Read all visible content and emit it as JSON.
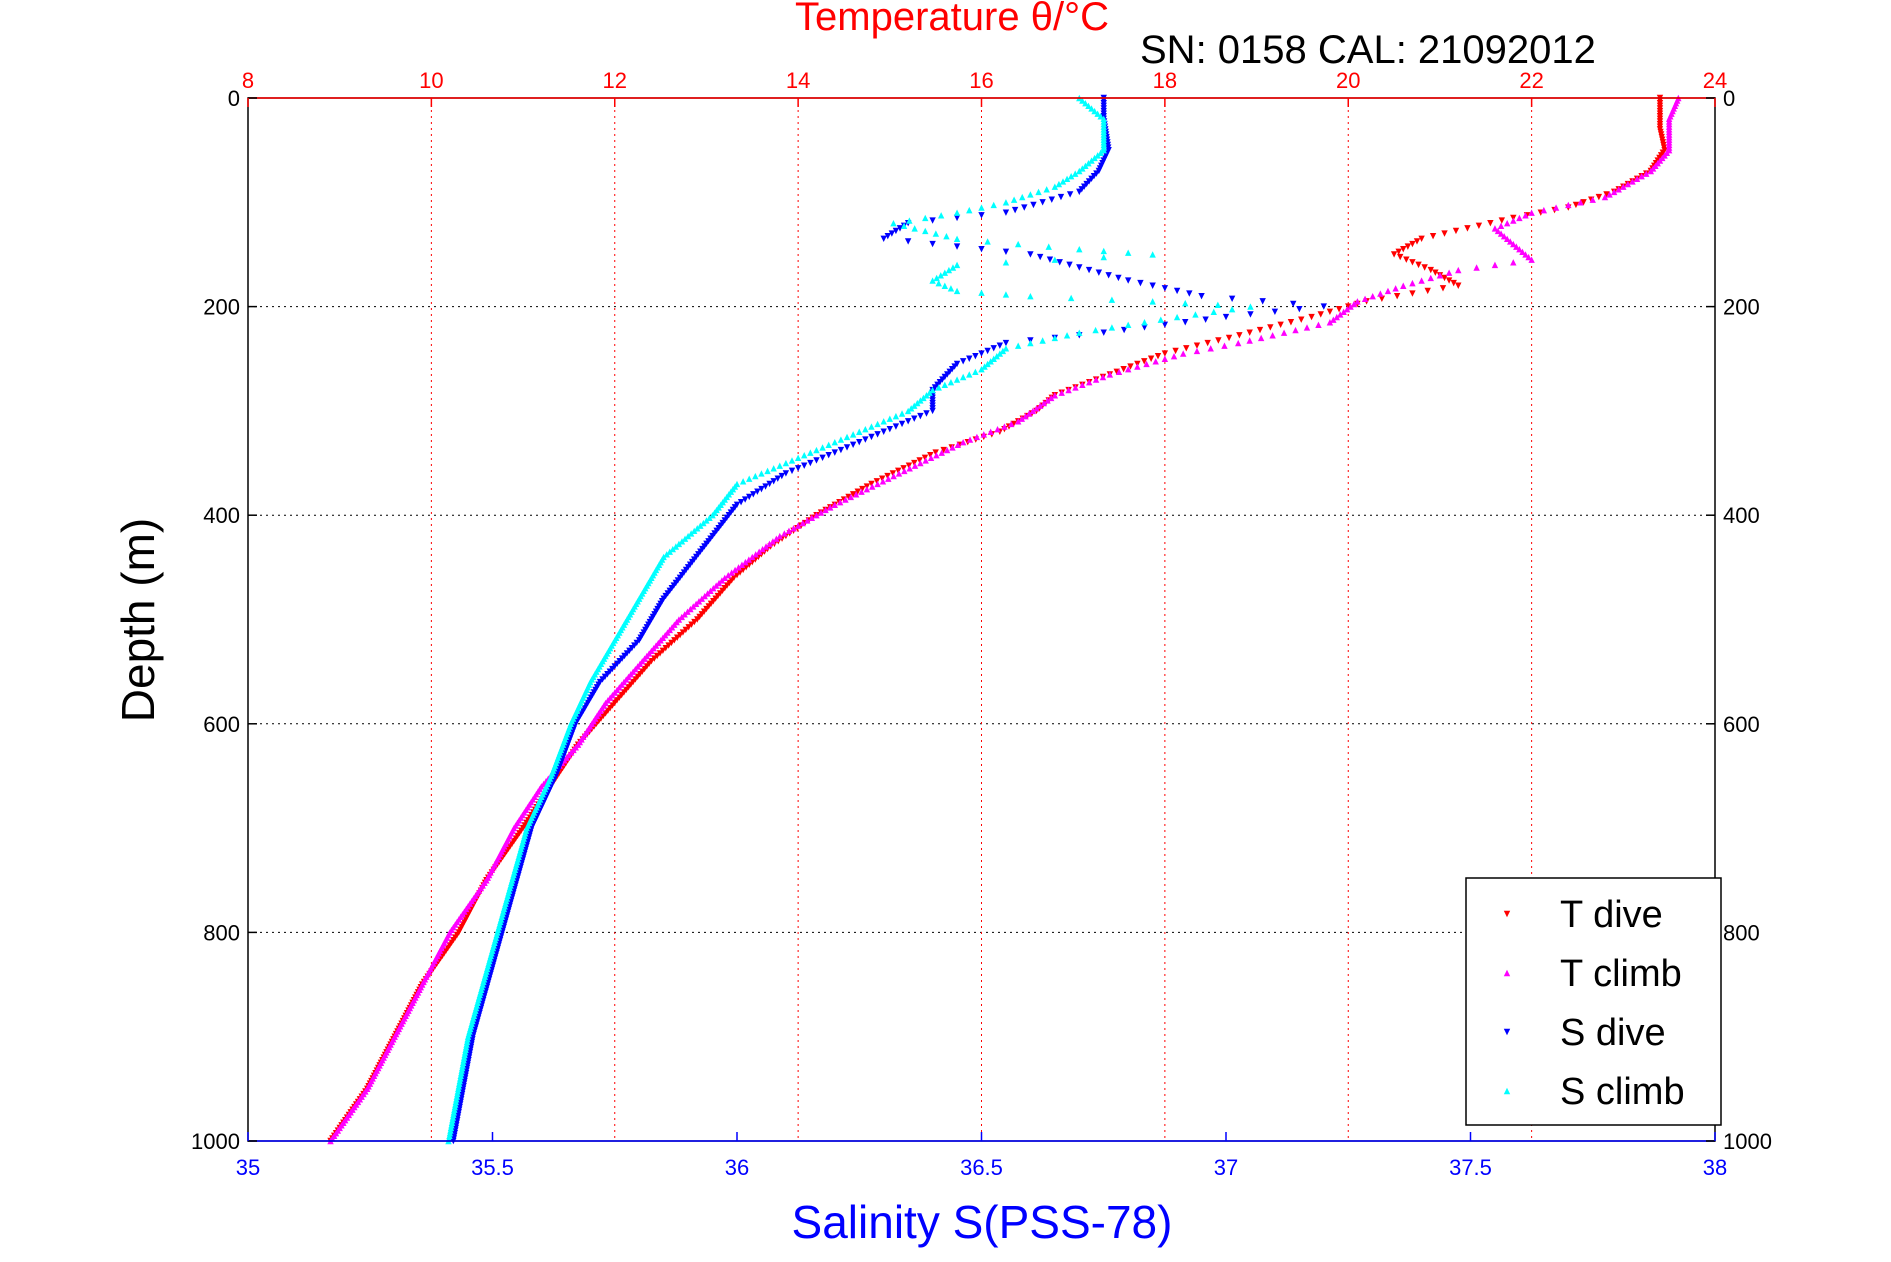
{
  "chart_data": {
    "type": "scatter",
    "title": "Temperature θ/°C",
    "subtitle": "SN: 0158  CAL: 21092012",
    "xlabel": "Salinity S(PSS-78)",
    "ylabel": "Depth (m)",
    "x_bottom": {
      "min": 35,
      "max": 38,
      "ticks": [
        "35",
        "35.5",
        "36",
        "36.5",
        "37",
        "37.5",
        "38"
      ],
      "color": "#0000ff"
    },
    "x_top": {
      "min": 8,
      "max": 24,
      "ticks": [
        "8",
        "10",
        "12",
        "14",
        "16",
        "18",
        "20",
        "22",
        "24"
      ],
      "color": "#ff0000"
    },
    "y": {
      "min": 0,
      "max": 1000,
      "reversed": true,
      "ticks": [
        "0",
        "200",
        "400",
        "600",
        "800",
        "1000"
      ]
    },
    "grid": true,
    "legend_position": "bottom-right",
    "series": [
      {
        "name": "T dive",
        "axis": "temperature",
        "color": "#ff0000",
        "marker": "triangle-down",
        "points": [
          [
            23.4,
            0
          ],
          [
            23.4,
            10
          ],
          [
            23.4,
            30
          ],
          [
            23.45,
            50
          ],
          [
            23.3,
            70
          ],
          [
            22.9,
            90
          ],
          [
            22.4,
            105
          ],
          [
            21.8,
            115
          ],
          [
            21.3,
            125
          ],
          [
            20.8,
            135
          ],
          [
            20.5,
            150
          ],
          [
            20.9,
            165
          ],
          [
            21.2,
            180
          ],
          [
            20.2,
            195
          ],
          [
            19.6,
            210
          ],
          [
            18.7,
            230
          ],
          [
            18.0,
            245
          ],
          [
            17.4,
            265
          ],
          [
            16.8,
            285
          ],
          [
            16.6,
            300
          ],
          [
            16.2,
            320
          ],
          [
            15.5,
            340
          ],
          [
            14.8,
            370
          ],
          [
            14.2,
            400
          ],
          [
            13.7,
            430
          ],
          [
            13.3,
            460
          ],
          [
            12.9,
            500
          ],
          [
            12.4,
            540
          ],
          [
            12.0,
            580
          ],
          [
            11.6,
            620
          ],
          [
            11.3,
            660
          ],
          [
            11.0,
            700
          ],
          [
            10.6,
            750
          ],
          [
            10.3,
            800
          ],
          [
            9.9,
            850
          ],
          [
            9.6,
            900
          ],
          [
            9.3,
            950
          ],
          [
            8.9,
            1000
          ]
        ]
      },
      {
        "name": "T climb",
        "axis": "temperature",
        "color": "#ff00ff",
        "marker": "triangle-up",
        "points": [
          [
            23.6,
            0
          ],
          [
            23.5,
            20
          ],
          [
            23.5,
            50
          ],
          [
            23.3,
            70
          ],
          [
            23.0,
            85
          ],
          [
            22.8,
            95
          ],
          [
            22.0,
            110
          ],
          [
            21.6,
            125
          ],
          [
            21.8,
            140
          ],
          [
            22.0,
            155
          ],
          [
            21.2,
            165
          ],
          [
            20.6,
            180
          ],
          [
            20.1,
            195
          ],
          [
            19.8,
            215
          ],
          [
            18.8,
            235
          ],
          [
            18.2,
            245
          ],
          [
            17.4,
            265
          ],
          [
            16.8,
            285
          ],
          [
            16.4,
            310
          ],
          [
            15.8,
            330
          ],
          [
            15.1,
            360
          ],
          [
            14.4,
            390
          ],
          [
            13.8,
            420
          ],
          [
            13.2,
            460
          ],
          [
            12.7,
            500
          ],
          [
            12.3,
            540
          ],
          [
            11.9,
            580
          ],
          [
            11.6,
            620
          ],
          [
            11.2,
            660
          ],
          [
            10.9,
            700
          ],
          [
            10.6,
            750
          ],
          [
            10.2,
            800
          ],
          [
            9.9,
            850
          ],
          [
            9.6,
            900
          ],
          [
            9.3,
            950
          ],
          [
            8.9,
            1000
          ]
        ]
      },
      {
        "name": "S dive",
        "axis": "salinity",
        "color": "#0000ff",
        "marker": "triangle-down",
        "points": [
          [
            36.75,
            0
          ],
          [
            36.75,
            20
          ],
          [
            36.76,
            50
          ],
          [
            36.74,
            70
          ],
          [
            36.7,
            90
          ],
          [
            36.55,
            110
          ],
          [
            36.35,
            120
          ],
          [
            36.3,
            135
          ],
          [
            36.6,
            150
          ],
          [
            36.8,
            175
          ],
          [
            36.95,
            190
          ],
          [
            37.2,
            200
          ],
          [
            37.0,
            210
          ],
          [
            36.75,
            225
          ],
          [
            36.55,
            235
          ],
          [
            36.45,
            255
          ],
          [
            36.4,
            280
          ],
          [
            36.4,
            300
          ],
          [
            36.3,
            320
          ],
          [
            36.2,
            340
          ],
          [
            36.1,
            360
          ],
          [
            36.0,
            390
          ],
          [
            35.95,
            420
          ],
          [
            35.9,
            450
          ],
          [
            35.85,
            480
          ],
          [
            35.8,
            520
          ],
          [
            35.72,
            560
          ],
          [
            35.67,
            600
          ],
          [
            35.63,
            650
          ],
          [
            35.58,
            700
          ],
          [
            35.55,
            750
          ],
          [
            35.52,
            800
          ],
          [
            35.49,
            850
          ],
          [
            35.46,
            900
          ],
          [
            35.44,
            950
          ],
          [
            35.42,
            1000
          ]
        ]
      },
      {
        "name": "S climb",
        "axis": "salinity",
        "color": "#00ffff",
        "marker": "triangle-up",
        "points": [
          [
            36.7,
            0
          ],
          [
            36.75,
            20
          ],
          [
            36.75,
            50
          ],
          [
            36.7,
            70
          ],
          [
            36.65,
            85
          ],
          [
            36.55,
            100
          ],
          [
            36.45,
            110
          ],
          [
            36.32,
            120
          ],
          [
            36.45,
            135
          ],
          [
            36.7,
            145
          ],
          [
            36.85,
            150
          ],
          [
            36.45,
            160
          ],
          [
            36.4,
            175
          ],
          [
            36.45,
            185
          ],
          [
            36.6,
            190
          ],
          [
            36.85,
            195
          ],
          [
            37.05,
            200
          ],
          [
            36.9,
            210
          ],
          [
            36.7,
            225
          ],
          [
            36.55,
            240
          ],
          [
            36.5,
            260
          ],
          [
            36.4,
            280
          ],
          [
            36.35,
            300
          ],
          [
            36.25,
            320
          ],
          [
            36.15,
            340
          ],
          [
            36.0,
            370
          ],
          [
            35.95,
            400
          ],
          [
            35.85,
            440
          ],
          [
            35.8,
            480
          ],
          [
            35.75,
            520
          ],
          [
            35.7,
            560
          ],
          [
            35.66,
            600
          ],
          [
            35.62,
            650
          ],
          [
            35.57,
            700
          ],
          [
            35.54,
            750
          ],
          [
            35.51,
            800
          ],
          [
            35.48,
            850
          ],
          [
            35.45,
            900
          ],
          [
            35.43,
            950
          ],
          [
            35.41,
            1000
          ]
        ]
      }
    ]
  }
}
